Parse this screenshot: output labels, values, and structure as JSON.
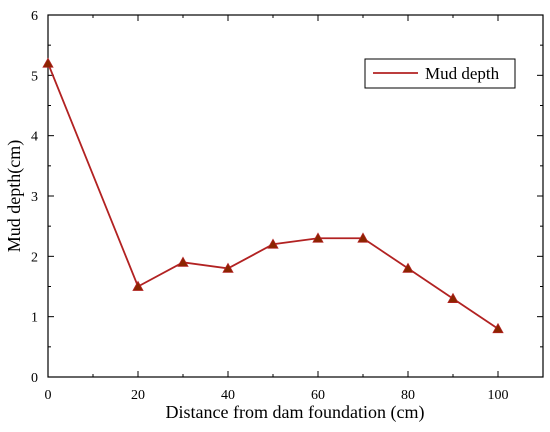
{
  "chart_data": {
    "type": "line",
    "xlabel": "Distance from dam foundation (cm)",
    "ylabel": "Mud depth(cm)",
    "xlim": [
      0,
      110
    ],
    "ylim": [
      0,
      6
    ],
    "xticks": [
      0,
      20,
      40,
      60,
      80,
      100
    ],
    "yticks": [
      0,
      1,
      2,
      3,
      4,
      5,
      6
    ],
    "grid": false,
    "legend_position": "top-right",
    "series": [
      {
        "name": "Mud depth",
        "color": "#b22222",
        "marker": "triangle",
        "x": [
          0,
          20,
          30,
          40,
          50,
          60,
          70,
          80,
          90,
          100
        ],
        "y": [
          5.2,
          1.5,
          1.9,
          1.8,
          2.2,
          2.3,
          2.3,
          1.8,
          1.3,
          0.8
        ]
      }
    ]
  }
}
